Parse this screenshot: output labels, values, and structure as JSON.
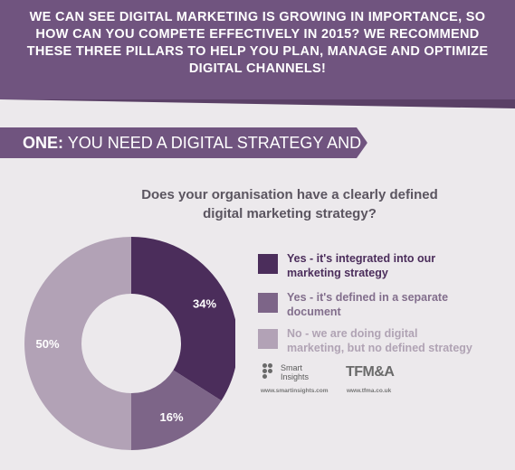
{
  "header": {
    "lines": [
      "WE CAN SEE DIGITAL MARKETING IS GROWING IN IMPORTANCE, SO",
      "HOW CAN YOU COMPETE EFFECTIVELY IN 2015? WE RECOMMEND",
      "THESE THREE PILLARS TO HELP YOU PLAN, MANAGE AND OPTIMIZE",
      "DIGITAL CHANNELS!"
    ]
  },
  "banner": {
    "number": "ONE:",
    "title": "YOU NEED A DIGITAL STRATEGY AND PLAN"
  },
  "colors": {
    "header_bg": "#70547f",
    "background": "#ece9ec",
    "slice_dark": "#4b2d5b",
    "slice_mid": "#7d6588",
    "slice_light": "#b2a2b6",
    "label_text_dark": "#4b2d5b",
    "label_text_mid": "#826e8c",
    "label_text_light": "#b0a3b4"
  },
  "chart_data": {
    "type": "pie",
    "title_lines": [
      "Does your organisation have a clearly defined",
      "digital marketing strategy?"
    ],
    "legend_position": "right",
    "slices": [
      {
        "label_lines": [
          "Yes - it's integrated into our",
          "marketing strategy"
        ],
        "value": 34,
        "display": "34%",
        "color": "#4b2d5b",
        "text_color": "#4b2d5b"
      },
      {
        "label_lines": [
          "Yes - it's defined in a separate",
          "document"
        ],
        "value": 16,
        "display": "16%",
        "color": "#7d6588",
        "text_color": "#826e8c"
      },
      {
        "label_lines": [
          "No - we are doing digital",
          "marketing, but no defined strategy"
        ],
        "value": 50,
        "display": "50%",
        "color": "#b2a2b6",
        "text_color": "#b0a3b4"
      }
    ]
  },
  "logos": {
    "smart_insights": {
      "line1": "Smart",
      "line2": "Insights",
      "url": "www.smartinsights.com"
    },
    "tfm": {
      "name": "TFM&A",
      "url": "www.tfma.co.uk"
    }
  }
}
